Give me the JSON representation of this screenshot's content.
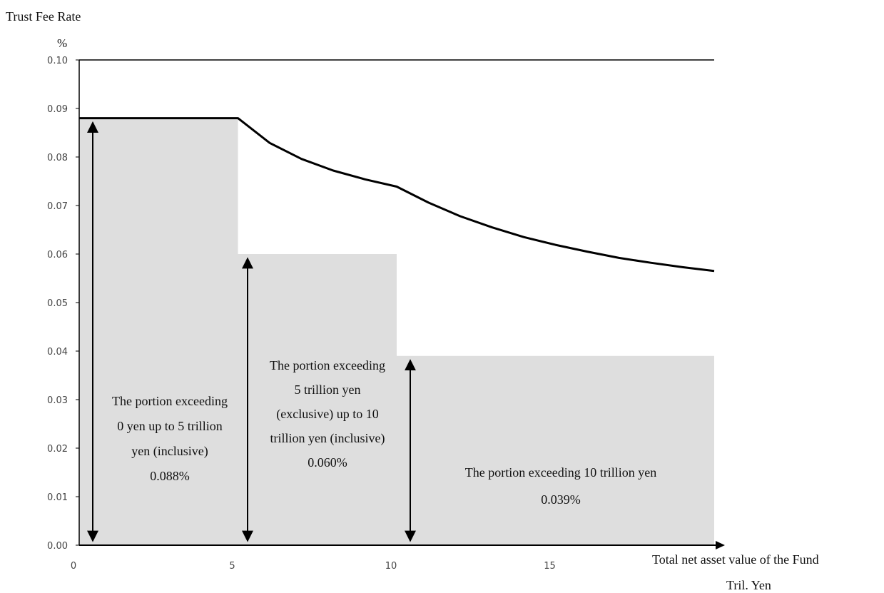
{
  "chart_data": {
    "type": "area",
    "title": "Trust Fee Rate",
    "y_unit": "%",
    "xlabel": "Total net asset value of the Fund",
    "x_unit": "Tril. Yen",
    "xlim": [
      0,
      20
    ],
    "ylim": [
      0.0,
      0.1
    ],
    "x_ticks": [
      "0",
      "5",
      "10",
      "15"
    ],
    "x_tick_values": [
      0,
      5,
      10,
      15
    ],
    "y_ticks": [
      "0.00",
      "0.01",
      "0.02",
      "0.03",
      "0.04",
      "0.05",
      "0.06",
      "0.07",
      "0.08",
      "0.09",
      "0.10"
    ],
    "y_tick_values": [
      0.0,
      0.01,
      0.02,
      0.03,
      0.04,
      0.05,
      0.06,
      0.07,
      0.08,
      0.09,
      0.1
    ],
    "grid": false,
    "tiers": [
      {
        "x_start": 0,
        "x_end": 5,
        "rate": 0.088,
        "label_lines": [
          "The portion exceeding",
          "0 yen up to 5 trillion",
          "yen (inclusive)",
          "0.088%"
        ]
      },
      {
        "x_start": 5,
        "x_end": 10,
        "rate": 0.06,
        "label_lines": [
          "The portion exceeding",
          "5 trillion yen",
          "(exclusive) up to 10",
          "trillion yen (inclusive)",
          "0.060%"
        ]
      },
      {
        "x_start": 10,
        "x_end": 20,
        "rate": 0.039,
        "label_lines": [
          "The portion exceeding 10 trillion yen",
          "0.039%"
        ]
      }
    ],
    "series": [
      {
        "x": [
          0,
          5,
          6,
          7,
          8,
          9,
          10,
          11,
          12,
          13,
          14,
          15,
          16,
          17,
          18,
          19,
          20
        ],
        "values": [
          0.088,
          0.088,
          0.0829,
          0.0796,
          0.0772,
          0.0754,
          0.0739,
          0.0706,
          0.0678,
          0.0655,
          0.0635,
          0.0619,
          0.0605,
          0.0592,
          0.0582,
          0.0573,
          0.0565
        ]
      }
    ],
    "top_line": 0.1
  }
}
